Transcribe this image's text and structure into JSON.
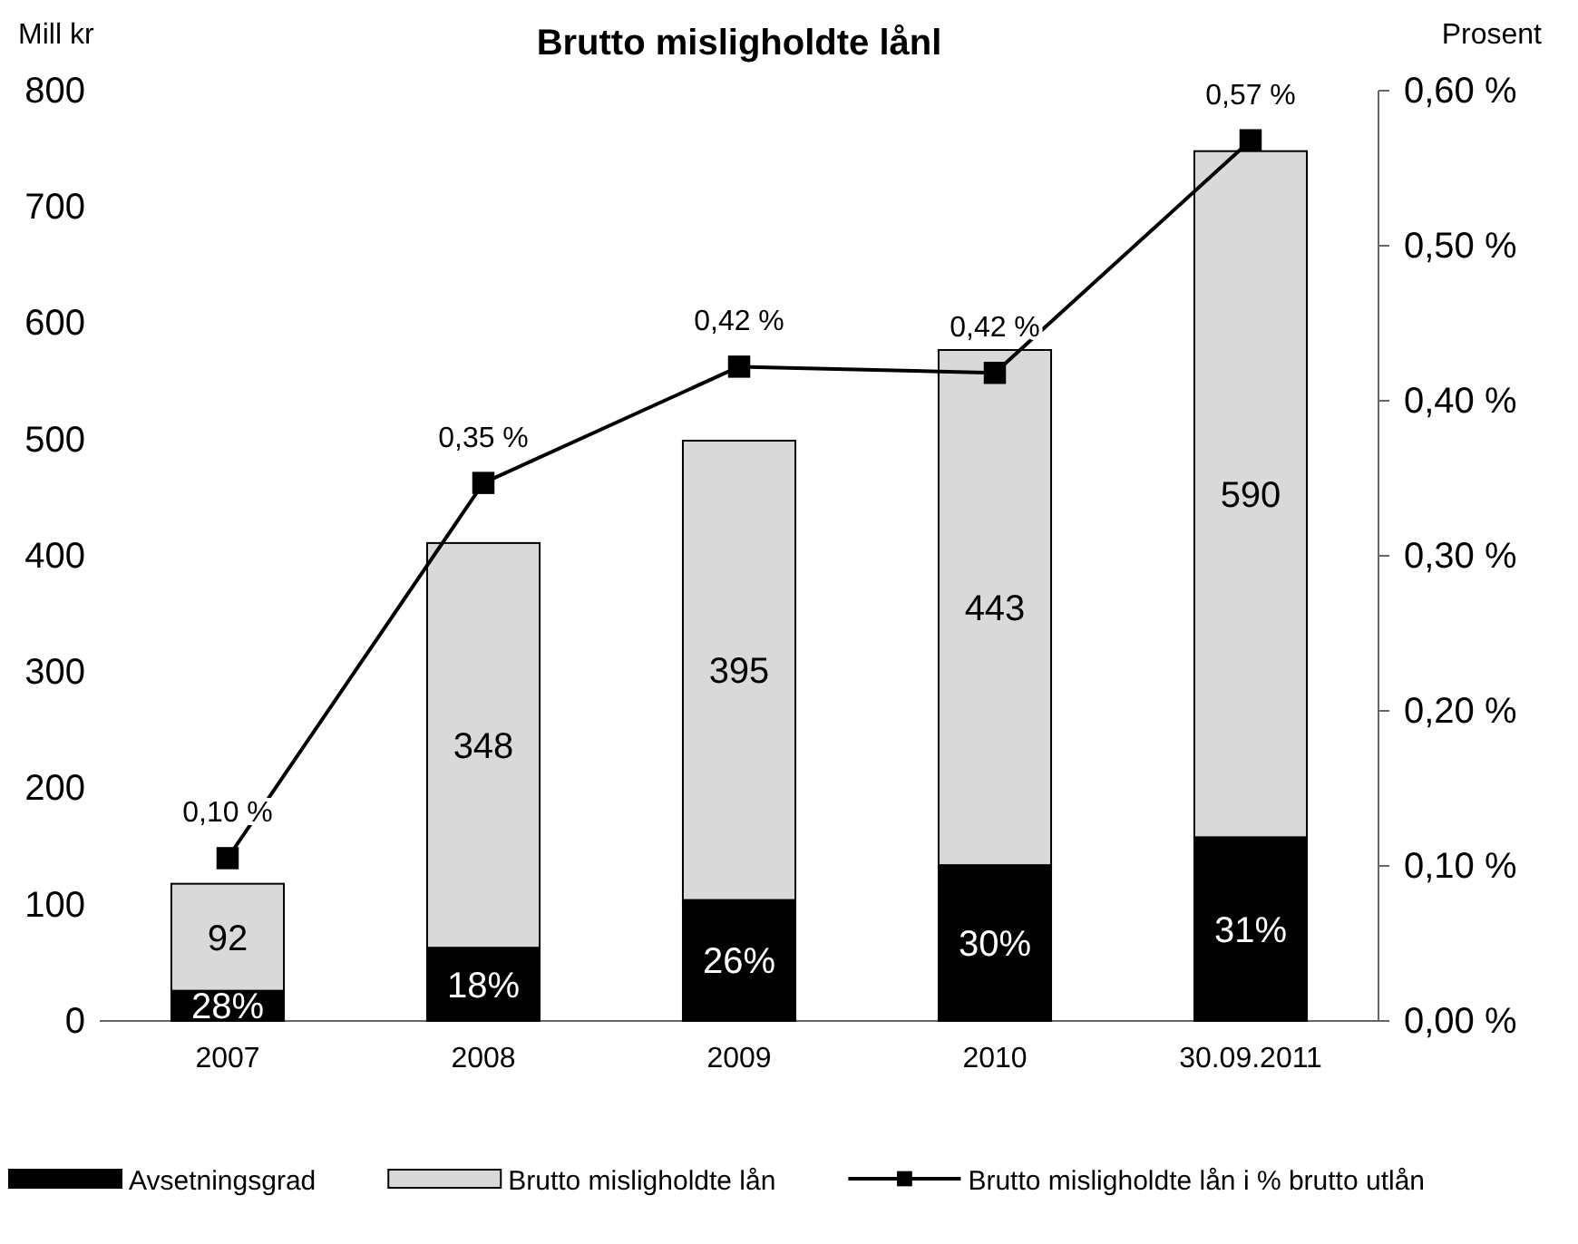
{
  "chart_data": {
    "type": "bar",
    "title": "Brutto misligholdte lånl",
    "ylabel": "Mill kr",
    "y2label": "Prosent",
    "categories": [
      "2007",
      "2008",
      "2009",
      "2010",
      "30.09.2011"
    ],
    "stacked": true,
    "series": [
      {
        "name": "Avsetningsgrad",
        "color": "#000000",
        "values": [
          26,
          63,
          104,
          134,
          158
        ]
      },
      {
        "name": "Brutto misligholdte lån",
        "color": "#d9d9d9",
        "values": [
          92,
          348,
          395,
          443,
          590
        ],
        "value_labels": [
          "92",
          "348",
          "395",
          "443",
          "590"
        ]
      },
      {
        "name": "Brutto misligholdte lån i % brutto utlån",
        "type": "line",
        "axis": "y2",
        "color": "#000000",
        "marker": "square",
        "values": [
          0.105,
          0.347,
          0.422,
          0.418,
          0.568
        ],
        "value_labels": [
          "0,10 %",
          "0,35 %",
          "0,42 %",
          "0,42 %",
          "0,57 %"
        ]
      }
    ],
    "ylim": [
      0,
      800
    ],
    "yticks": [
      0,
      100,
      200,
      300,
      400,
      500,
      600,
      700,
      800
    ],
    "y2lim": [
      0,
      0.6
    ],
    "y2ticks": [
      {
        "value": 0,
        "label": "0,00 %"
      },
      {
        "value": 0.1,
        "label": "0,10 %"
      },
      {
        "value": 0.2,
        "label": "0,20 %"
      },
      {
        "value": 0.3,
        "label": "0,30 %"
      },
      {
        "value": 0.4,
        "label": "0,40 %"
      },
      {
        "value": 0.5,
        "label": "0,50 %"
      },
      {
        "value": 0.6,
        "label": "0,60 %"
      }
    ],
    "annotations": [
      {
        "text": "28%",
        "x": "2007",
        "y": 26
      },
      {
        "text": "18%",
        "x": "2008",
        "y": 63
      },
      {
        "text": "26%",
        "x": "2009",
        "y": 104
      },
      {
        "text": "30%",
        "x": "2010",
        "y": 134
      },
      {
        "text": "31%",
        "x": "30.09.2011",
        "y": 158
      }
    ],
    "grid": false,
    "legend": "bottom"
  }
}
